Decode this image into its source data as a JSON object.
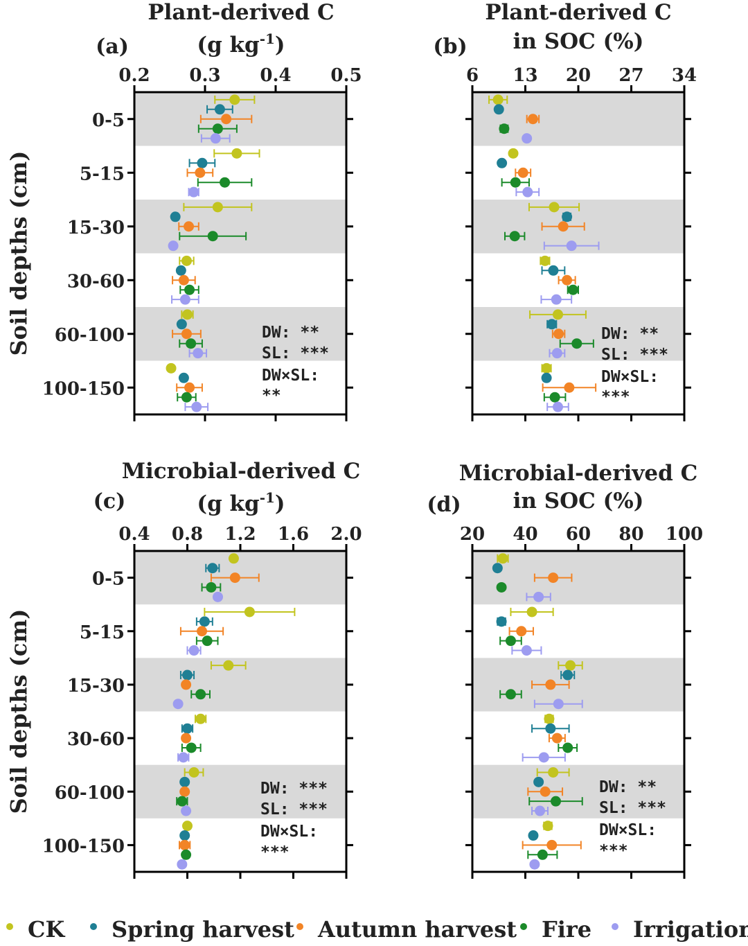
{
  "colors": {
    "CK": "#c2c41f",
    "Spring harvest": "#1f7f94",
    "Autumn harvest": "#f28426",
    "Fire": "#1b8a2a",
    "Irrigation": "#9d9cf0",
    "band": "#d9d9d9"
  },
  "legend": [
    "CK",
    "Spring harvest",
    "Autumn harvest",
    "Fire",
    "Irrigation"
  ],
  "chart_data": [
    {
      "type": "scatter",
      "panel": "(a)",
      "title_lines": [
        "Plant-derived C",
        "(g kg",
        ")"
      ],
      "title_superscript": "-1",
      "ylabel": "Soil depths (cm)",
      "categories": [
        "0-5",
        "5-15",
        "15-30",
        "30-60",
        "60-100",
        "100-150"
      ],
      "xlim": [
        0.2,
        0.5
      ],
      "xticks": [
        "0.2",
        "0.3",
        "0.4",
        "0.5"
      ],
      "xtick_values": [
        0.2,
        0.3,
        0.4,
        0.5
      ],
      "stats": [
        "DW: **",
        "SL: ***",
        "DW×SL:",
        "**"
      ],
      "series": [
        {
          "name": "CK",
          "values": [
            0.342,
            0.345,
            0.318,
            0.274,
            0.275,
            0.252
          ],
          "err": [
            0.028,
            0.032,
            0.048,
            0.01,
            0.008,
            0.0
          ]
        },
        {
          "name": "Spring harvest",
          "values": [
            0.321,
            0.296,
            0.258,
            0.266,
            0.267,
            0.27
          ],
          "err": [
            0.018,
            0.018,
            0.0,
            0.0,
            0.0,
            0.0
          ]
        },
        {
          "name": "Autumn harvest",
          "values": [
            0.33,
            0.293,
            0.277,
            0.27,
            0.274,
            0.278
          ],
          "err": [
            0.036,
            0.018,
            0.014,
            0.016,
            0.02,
            0.018
          ]
        },
        {
          "name": "Fire",
          "values": [
            0.318,
            0.328,
            0.311,
            0.278,
            0.28,
            0.274
          ],
          "err": [
            0.027,
            0.038,
            0.047,
            0.013,
            0.016,
            0.013
          ]
        },
        {
          "name": "Irrigation",
          "values": [
            0.315,
            0.284,
            0.255,
            0.272,
            0.29,
            0.288
          ],
          "err": [
            0.02,
            0.007,
            0.0,
            0.019,
            0.012,
            0.016
          ]
        }
      ]
    },
    {
      "type": "scatter",
      "panel": "(b)",
      "title_lines": [
        "Plant-derived C",
        "in SOC (%)"
      ],
      "ylabel": "",
      "categories": [
        "0-5",
        "5-15",
        "15-30",
        "30-60",
        "60-100",
        "100-150"
      ],
      "xlim": [
        6,
        34
      ],
      "xticks": [
        "6",
        "13",
        "20",
        "27",
        "34"
      ],
      "xtick_values": [
        6,
        13,
        20,
        27,
        34
      ],
      "stats": [
        "DW: **",
        "SL: ***",
        "DW×SL:",
        "***"
      ],
      "series": [
        {
          "name": "CK",
          "values": [
            9.4,
            11.4,
            16.8,
            15.6,
            17.3,
            15.8
          ],
          "err": [
            1.2,
            0.0,
            3.3,
            0.6,
            3.7,
            0.6
          ]
        },
        {
          "name": "Spring harvest",
          "values": [
            9.5,
            9.9,
            18.5,
            16.7,
            16.5,
            15.8
          ],
          "err": [
            0.0,
            0.0,
            0.5,
            1.5,
            0.6,
            0.0
          ]
        },
        {
          "name": "Autumn harvest",
          "values": [
            14.0,
            12.7,
            18.0,
            18.5,
            17.4,
            18.8
          ],
          "err": [
            0.8,
            1.0,
            2.8,
            1.1,
            0.8,
            3.5
          ]
        },
        {
          "name": "Fire",
          "values": [
            10.2,
            11.7,
            11.6,
            19.3,
            19.8,
            16.9
          ],
          "err": [
            0.5,
            1.8,
            1.3,
            0.7,
            2.2,
            1.4
          ]
        },
        {
          "name": "Irrigation",
          "values": [
            13.2,
            13.3,
            19.1,
            17.1,
            17.2,
            17.3
          ],
          "err": [
            0.0,
            1.5,
            3.6,
            2.0,
            1.0,
            1.4
          ]
        }
      ]
    },
    {
      "type": "scatter",
      "panel": "(c)",
      "title_lines": [
        "Microbial-derived C",
        "(g kg",
        ")"
      ],
      "title_superscript": "-1",
      "ylabel": "Soil depths (cm)",
      "categories": [
        "0-5",
        "5-15",
        "15-30",
        "30-60",
        "60-100",
        "100-150"
      ],
      "xlim": [
        0.4,
        2.0
      ],
      "xticks": [
        "0.4",
        "0.8",
        "1.2",
        "1.6",
        "2.0"
      ],
      "xtick_values": [
        0.4,
        0.8,
        1.2,
        1.6,
        2.0
      ],
      "stats": [
        "DW: ***",
        "SL: ***",
        "DW×SL:",
        "***"
      ],
      "series": [
        {
          "name": "CK",
          "values": [
            1.15,
            1.27,
            1.11,
            0.9,
            0.85,
            0.8
          ],
          "err": [
            0.0,
            0.34,
            0.13,
            0.04,
            0.07,
            0.0
          ]
        },
        {
          "name": "Spring harvest",
          "values": [
            0.99,
            0.93,
            0.8,
            0.8,
            0.78,
            0.78
          ],
          "err": [
            0.05,
            0.06,
            0.05,
            0.04,
            0.0,
            0.0
          ]
        },
        {
          "name": "Autumn harvest",
          "values": [
            1.16,
            0.91,
            0.79,
            0.79,
            0.78,
            0.78
          ],
          "err": [
            0.18,
            0.16,
            0.0,
            0.0,
            0.0,
            0.04
          ]
        },
        {
          "name": "Fire",
          "values": [
            0.98,
            0.95,
            0.9,
            0.83,
            0.76,
            0.79
          ],
          "err": [
            0.07,
            0.08,
            0.07,
            0.07,
            0.04,
            0.0
          ]
        },
        {
          "name": "Irrigation",
          "values": [
            1.03,
            0.85,
            0.73,
            0.77,
            0.79,
            0.76
          ],
          "err": [
            0.0,
            0.05,
            0.0,
            0.04,
            0.0,
            0.0
          ]
        }
      ]
    },
    {
      "type": "scatter",
      "panel": "(d)",
      "title_lines": [
        "Microbial-derived C",
        "in SOC (%)"
      ],
      "ylabel": "",
      "categories": [
        "0-5",
        "5-15",
        "15-30",
        "30-60",
        "60-100",
        "100-150"
      ],
      "xlim": [
        20,
        100
      ],
      "xticks": [
        "20",
        "40",
        "60",
        "80",
        "100"
      ],
      "xtick_values": [
        20,
        40,
        60,
        80,
        100
      ],
      "stats": [
        "DW: **",
        "SL: ***",
        "DW×SL:",
        "***"
      ],
      "series": [
        {
          "name": "CK",
          "values": [
            31.5,
            42.5,
            57.0,
            49.0,
            50.5,
            48.5
          ],
          "err": [
            2.0,
            8.0,
            4.5,
            1.5,
            6.0,
            1.5
          ]
        },
        {
          "name": "Spring harvest",
          "values": [
            29.5,
            31.0,
            56.0,
            49.5,
            45.0,
            43.0
          ],
          "err": [
            0.0,
            1.5,
            2.5,
            7.0,
            0.0,
            0.0
          ]
        },
        {
          "name": "Autumn harvest",
          "values": [
            50.5,
            38.5,
            49.5,
            52.0,
            47.5,
            50.0
          ],
          "err": [
            7.0,
            4.5,
            7.0,
            3.0,
            6.5,
            11.0
          ]
        },
        {
          "name": "Fire",
          "values": [
            31.0,
            34.5,
            34.5,
            56.0,
            51.5,
            46.5
          ],
          "err": [
            0.0,
            4.0,
            4.0,
            3.5,
            10.0,
            5.5
          ]
        },
        {
          "name": "Irrigation",
          "values": [
            45.0,
            40.5,
            52.5,
            47.0,
            45.5,
            43.5
          ],
          "err": [
            4.5,
            5.5,
            9.0,
            8.0,
            3.0,
            0.0
          ]
        }
      ]
    }
  ]
}
